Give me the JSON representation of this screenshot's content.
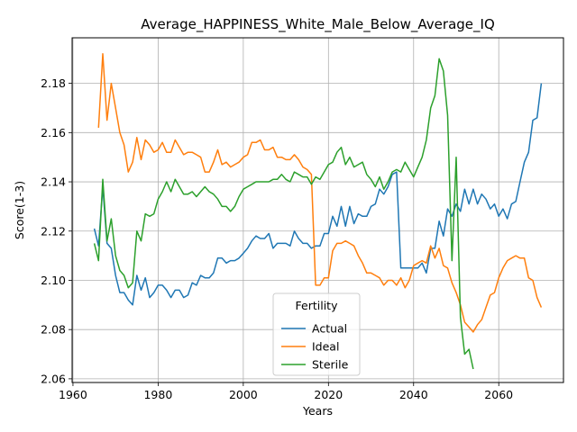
{
  "chart_data": {
    "type": "line",
    "title": "Average_HAPPINESS_White_Male_Below_Average_IQ",
    "xlabel": "Years",
    "ylabel": "Score(1-3)",
    "xlim": [
      1959.8,
      2075.2
    ],
    "ylim": [
      2.0585,
      2.1985
    ],
    "xticks": [
      1960,
      1980,
      2000,
      2020,
      2040,
      2060
    ],
    "yticks": [
      2.06,
      2.08,
      2.1,
      2.12,
      2.14,
      2.16,
      2.18
    ],
    "ytick_labels": [
      "2.06",
      "2.08",
      "2.10",
      "2.12",
      "2.14",
      "2.16",
      "2.18"
    ],
    "grid": true,
    "legend": {
      "title": "Fertility",
      "position": "bottom-center"
    },
    "series": [
      {
        "name": "Actual",
        "color": "#1f77b4",
        "x": [
          1965,
          1966,
          1967,
          1968,
          1969,
          1970,
          1971,
          1972,
          1973,
          1974,
          1975,
          1976,
          1977,
          1978,
          1979,
          1980,
          1981,
          1982,
          1983,
          1984,
          1985,
          1986,
          1987,
          1988,
          1989,
          1990,
          1991,
          1992,
          1993,
          1994,
          1995,
          1996,
          1997,
          1998,
          1999,
          2000,
          2001,
          2002,
          2003,
          2004,
          2005,
          2006,
          2007,
          2008,
          2009,
          2010,
          2011,
          2012,
          2013,
          2014,
          2015,
          2016,
          2017,
          2018,
          2019,
          2020,
          2021,
          2022,
          2023,
          2024,
          2025,
          2026,
          2027,
          2028,
          2029,
          2030,
          2031,
          2032,
          2033,
          2034,
          2035,
          2036,
          2037,
          2038,
          2039,
          2040,
          2041,
          2042,
          2043,
          2044,
          2045,
          2046,
          2047,
          2048,
          2049,
          2050,
          2051,
          2052,
          2053,
          2054,
          2055,
          2056,
          2057,
          2058,
          2059,
          2060,
          2061,
          2062,
          2063,
          2064,
          2065,
          2066,
          2067,
          2068,
          2069,
          2070
        ],
        "values": [
          2.121,
          2.114,
          2.138,
          2.115,
          2.113,
          2.102,
          2.095,
          2.095,
          2.092,
          2.09,
          2.102,
          2.096,
          2.101,
          2.093,
          2.095,
          2.098,
          2.098,
          2.096,
          2.093,
          2.096,
          2.096,
          2.093,
          2.094,
          2.099,
          2.098,
          2.102,
          2.101,
          2.101,
          2.103,
          2.109,
          2.109,
          2.107,
          2.108,
          2.108,
          2.109,
          2.111,
          2.113,
          2.116,
          2.118,
          2.117,
          2.117,
          2.119,
          2.113,
          2.115,
          2.115,
          2.115,
          2.114,
          2.12,
          2.117,
          2.115,
          2.115,
          2.113,
          2.114,
          2.114,
          2.119,
          2.119,
          2.126,
          2.122,
          2.13,
          2.122,
          2.13,
          2.123,
          2.127,
          2.126,
          2.126,
          2.13,
          2.131,
          2.137,
          2.135,
          2.138,
          2.143,
          2.144,
          2.105,
          2.105,
          2.105,
          2.105,
          2.105,
          2.107,
          2.103,
          2.113,
          2.113,
          2.124,
          2.118,
          2.129,
          2.126,
          2.131,
          2.128,
          2.137,
          2.131,
          2.137,
          2.131,
          2.135,
          2.133,
          2.129,
          2.131,
          2.126,
          2.129,
          2.125,
          2.131,
          2.132,
          2.14,
          2.148,
          2.152,
          2.165,
          2.166,
          2.18
        ]
      },
      {
        "name": "Ideal",
        "color": "#ff7f0e",
        "x": [
          1966,
          1967,
          1968,
          1969,
          1970,
          1971,
          1972,
          1973,
          1974,
          1975,
          1976,
          1977,
          1978,
          1979,
          1980,
          1981,
          1982,
          1983,
          1984,
          1985,
          1986,
          1987,
          1988,
          1989,
          1990,
          1991,
          1992,
          1993,
          1994,
          1995,
          1996,
          1997,
          1998,
          1999,
          2000,
          2001,
          2002,
          2003,
          2004,
          2005,
          2006,
          2007,
          2008,
          2009,
          2010,
          2011,
          2012,
          2013,
          2014,
          2015,
          2016,
          2017,
          2018,
          2019,
          2020,
          2021,
          2022,
          2023,
          2024,
          2025,
          2026,
          2027,
          2028,
          2029,
          2030,
          2031,
          2032,
          2033,
          2034,
          2035,
          2036,
          2037,
          2038,
          2039,
          2040,
          2041,
          2042,
          2043,
          2044,
          2045,
          2046,
          2047,
          2048,
          2049,
          2050,
          2051,
          2052,
          2053,
          2054,
          2055,
          2056,
          2057,
          2058,
          2059,
          2060,
          2061,
          2062,
          2063,
          2064,
          2065,
          2066,
          2067,
          2068,
          2069,
          2070
        ],
        "values": [
          2.162,
          2.192,
          2.165,
          2.18,
          2.17,
          2.16,
          2.155,
          2.144,
          2.148,
          2.158,
          2.149,
          2.157,
          2.155,
          2.152,
          2.153,
          2.156,
          2.152,
          2.152,
          2.157,
          2.154,
          2.151,
          2.152,
          2.152,
          2.151,
          2.15,
          2.144,
          2.144,
          2.148,
          2.153,
          2.147,
          2.148,
          2.146,
          2.147,
          2.148,
          2.15,
          2.151,
          2.156,
          2.156,
          2.157,
          2.153,
          2.153,
          2.154,
          2.15,
          2.15,
          2.149,
          2.149,
          2.151,
          2.149,
          2.146,
          2.145,
          2.143,
          2.098,
          2.098,
          2.101,
          2.101,
          2.112,
          2.115,
          2.115,
          2.116,
          2.115,
          2.114,
          2.11,
          2.107,
          2.103,
          2.103,
          2.102,
          2.101,
          2.098,
          2.1,
          2.1,
          2.098,
          2.101,
          2.097,
          2.1,
          2.106,
          2.107,
          2.108,
          2.107,
          2.114,
          2.109,
          2.113,
          2.106,
          2.105,
          2.099,
          2.095,
          2.09,
          2.083,
          2.081,
          2.079,
          2.082,
          2.084,
          2.089,
          2.094,
          2.095,
          2.101,
          2.105,
          2.108,
          2.109,
          2.11,
          2.109,
          2.109,
          2.101,
          2.1,
          2.093,
          2.089
        ]
      },
      {
        "name": "Sterile",
        "color": "#2ca02c",
        "x": [
          1965,
          1966,
          1967,
          1968,
          1969,
          1970,
          1971,
          1972,
          1973,
          1974,
          1975,
          1976,
          1977,
          1978,
          1979,
          1980,
          1981,
          1982,
          1983,
          1984,
          1985,
          1986,
          1987,
          1988,
          1989,
          1990,
          1991,
          1992,
          1993,
          1994,
          1995,
          1996,
          1997,
          1998,
          1999,
          2000,
          2001,
          2002,
          2003,
          2004,
          2005,
          2006,
          2007,
          2008,
          2009,
          2010,
          2011,
          2012,
          2013,
          2014,
          2015,
          2016,
          2017,
          2018,
          2019,
          2020,
          2021,
          2022,
          2023,
          2024,
          2025,
          2026,
          2027,
          2028,
          2029,
          2030,
          2031,
          2032,
          2033,
          2034,
          2035,
          2036,
          2037,
          2038,
          2039,
          2040,
          2041,
          2042,
          2043,
          2044,
          2045,
          2046,
          2047,
          2048,
          2049,
          2050,
          2051,
          2052,
          2053,
          2054
        ],
        "values": [
          2.115,
          2.108,
          2.141,
          2.116,
          2.125,
          2.11,
          2.104,
          2.102,
          2.097,
          2.099,
          2.12,
          2.116,
          2.127,
          2.126,
          2.127,
          2.133,
          2.136,
          2.14,
          2.136,
          2.141,
          2.138,
          2.135,
          2.135,
          2.136,
          2.134,
          2.136,
          2.138,
          2.136,
          2.135,
          2.133,
          2.13,
          2.13,
          2.128,
          2.13,
          2.134,
          2.137,
          2.138,
          2.139,
          2.14,
          2.14,
          2.14,
          2.14,
          2.141,
          2.141,
          2.143,
          2.141,
          2.14,
          2.144,
          2.143,
          2.142,
          2.142,
          2.139,
          2.142,
          2.141,
          2.144,
          2.147,
          2.148,
          2.152,
          2.154,
          2.147,
          2.15,
          2.146,
          2.147,
          2.148,
          2.143,
          2.141,
          2.138,
          2.142,
          2.137,
          2.14,
          2.144,
          2.145,
          2.144,
          2.148,
          2.145,
          2.142,
          2.146,
          2.15,
          2.157,
          2.17,
          2.175,
          2.19,
          2.185,
          2.167,
          2.108,
          2.15,
          2.085,
          2.07,
          2.072,
          2.064
        ]
      }
    ]
  }
}
